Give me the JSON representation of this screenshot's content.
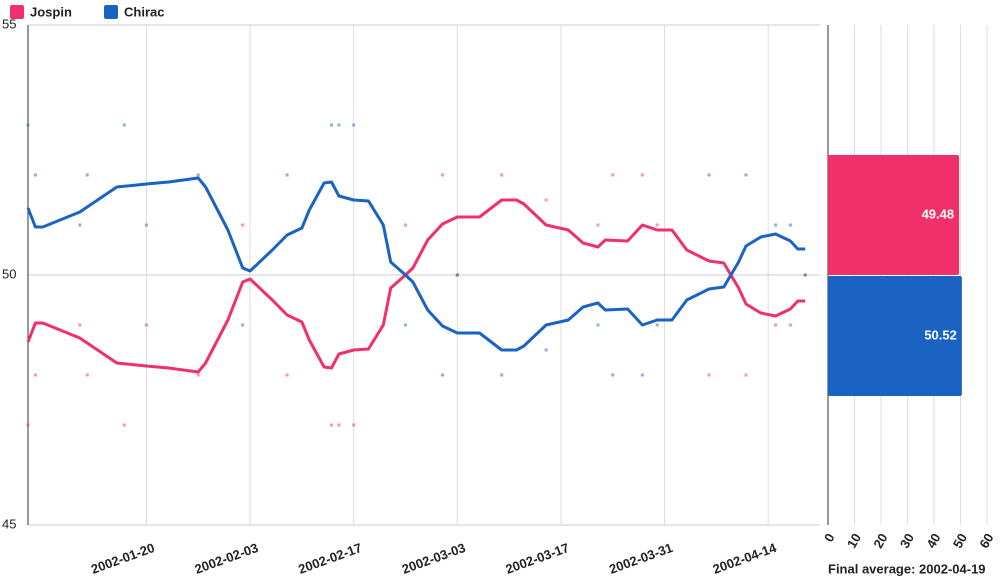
{
  "chart_data": [
    {
      "type": "line",
      "x": [
        "2002-01-04",
        "2002-01-05",
        "2002-01-06",
        "2002-01-11",
        "2002-01-16",
        "2002-01-20",
        "2002-01-23",
        "2002-01-27",
        "2002-01-28",
        "2002-01-31",
        "2002-02-02",
        "2002-02-03",
        "2002-02-06",
        "2002-02-08",
        "2002-02-10",
        "2002-02-11",
        "2002-02-13",
        "2002-02-14",
        "2002-02-15",
        "2002-02-17",
        "2002-02-19",
        "2002-02-21",
        "2002-02-22",
        "2002-02-24",
        "2002-02-25",
        "2002-02-27",
        "2002-03-01",
        "2002-03-03",
        "2002-03-06",
        "2002-03-09",
        "2002-03-11",
        "2002-03-12",
        "2002-03-15",
        "2002-03-18",
        "2002-03-20",
        "2002-03-22",
        "2002-03-23",
        "2002-03-26",
        "2002-03-28",
        "2002-03-30",
        "2002-04-01",
        "2002-04-03",
        "2002-04-06",
        "2002-04-08",
        "2002-04-10",
        "2002-04-11",
        "2002-04-13",
        "2002-04-15",
        "2002-04-17",
        "2002-04-18",
        "2002-04-19"
      ],
      "series": [
        {
          "name": "Jospin",
          "color": "#f0306b",
          "values": [
            48.66,
            49.04,
            49.04,
            48.74,
            48.24,
            48.18,
            48.14,
            48.06,
            48.24,
            49.1,
            49.86,
            49.92,
            49.5,
            49.2,
            49.06,
            48.7,
            48.16,
            48.14,
            48.42,
            48.5,
            48.52,
            49.0,
            49.74,
            50.0,
            50.14,
            50.7,
            51.02,
            51.16,
            51.16,
            51.5,
            51.5,
            51.42,
            51.0,
            50.9,
            50.64,
            50.56,
            50.7,
            50.68,
            51.0,
            50.9,
            50.9,
            50.5,
            50.28,
            50.24,
            49.74,
            49.42,
            49.24,
            49.18,
            49.32,
            49.48,
            49.48
          ],
          "poll_values": [
            47,
            48,
            49,
            48,
            47,
            49,
            48,
            51,
            48,
            47,
            47,
            47,
            51,
            52,
            50,
            52,
            51.5,
            51,
            52,
            52,
            51,
            48,
            48,
            49,
            49,
            50
          ]
        },
        {
          "name": "Chirac",
          "color": "#1a63c2",
          "values": [
            51.34,
            50.96,
            50.96,
            51.26,
            51.76,
            51.82,
            51.86,
            51.94,
            51.76,
            50.9,
            50.14,
            50.08,
            50.5,
            50.8,
            50.94,
            51.3,
            51.84,
            51.86,
            51.58,
            51.5,
            51.48,
            51.0,
            50.26,
            50.0,
            49.86,
            49.3,
            48.98,
            48.84,
            48.84,
            48.5,
            48.5,
            48.58,
            49.0,
            49.1,
            49.36,
            49.44,
            49.3,
            49.32,
            49.0,
            49.1,
            49.1,
            49.5,
            49.72,
            49.76,
            50.26,
            50.58,
            50.76,
            50.82,
            50.68,
            50.52,
            50.52
          ],
          "poll_values": [
            53,
            52,
            51,
            52,
            53,
            51,
            52,
            49,
            52,
            53,
            53,
            53,
            49,
            48,
            50,
            48,
            48.5,
            49,
            48,
            48,
            49,
            52,
            52,
            51,
            51,
            50
          ]
        }
      ],
      "poll_x": [
        "2002-01-04",
        "2002-01-05",
        "2002-01-11",
        "2002-01-12",
        "2002-01-17",
        "2002-01-20",
        "2002-01-27",
        "2002-02-02",
        "2002-02-08",
        "2002-02-14",
        "2002-02-15",
        "2002-02-17",
        "2002-02-24",
        "2002-03-01",
        "2002-03-03",
        "2002-03-09",
        "2002-03-15",
        "2002-03-22",
        "2002-03-24",
        "2002-03-28",
        "2002-03-30",
        "2002-04-06",
        "2002-04-11",
        "2002-04-15",
        "2002-04-17",
        "2002-04-19"
      ],
      "xlim": [
        "2002-01-04",
        "2002-04-21"
      ],
      "xticks": [
        "2002-01-20",
        "2002-02-03",
        "2002-02-17",
        "2002-03-03",
        "2002-03-17",
        "2002-03-31",
        "2002-04-14"
      ],
      "ylim": [
        45,
        55
      ],
      "yticks": [
        45,
        50,
        55
      ],
      "grid": true
    },
    {
      "type": "hbar",
      "values": [
        49.48,
        50.52
      ],
      "colors": [
        "#f0306b",
        "#1a63c2"
      ],
      "xlim": [
        0,
        60
      ],
      "xticks": [
        0,
        10,
        20,
        30,
        40,
        50,
        60
      ],
      "xlabel": "Final average: 2002-04-19",
      "grid": true
    }
  ]
}
